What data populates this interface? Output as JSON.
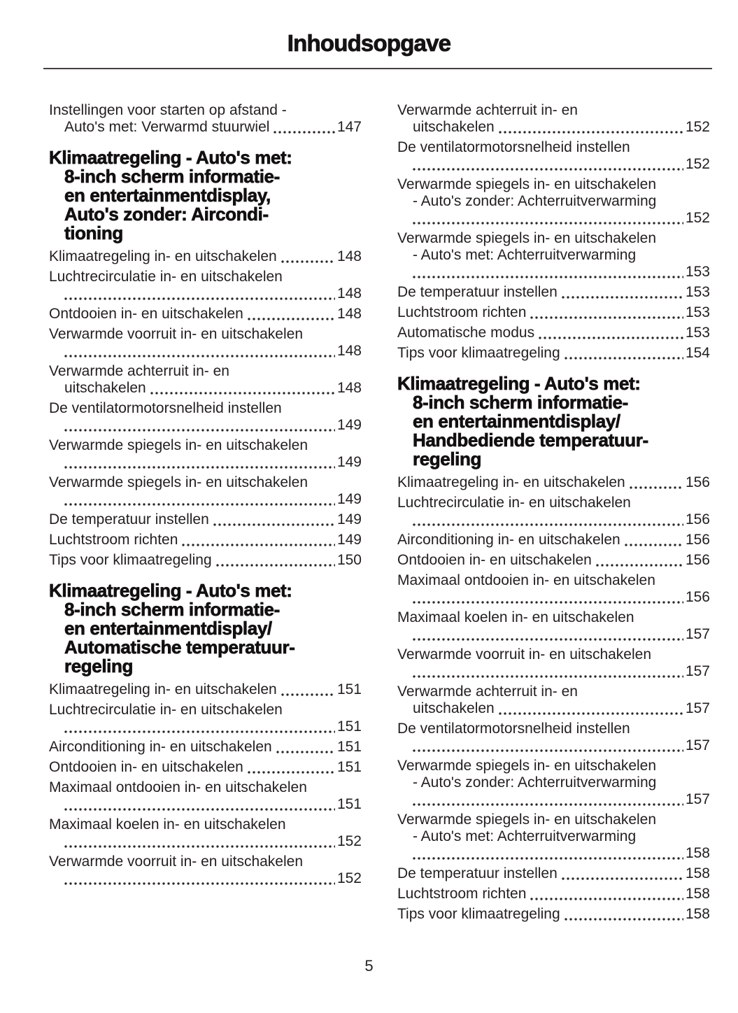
{
  "page": {
    "title": "Inhoudsopgave",
    "footer_page_number": "5",
    "background_color": "#ffffff",
    "text_color": "#231f20",
    "heading_color": "#121011",
    "divider_color": "#454143"
  },
  "toc": {
    "columns": [
      {
        "name": "left",
        "blocks": [
          {
            "type": "entry",
            "lines": [
              "Instellingen voor starten op afstand -",
              "Auto's met: Verwarmd stuurwiel"
            ],
            "page": "147"
          },
          {
            "type": "heading",
            "lines": [
              "Klimaatregeling - Auto's met:",
              "8-inch scherm informatie-",
              "en entertainmentdisplay,",
              "Auto's zonder: Aircondi-",
              "tioning"
            ]
          },
          {
            "type": "entry",
            "lines": [
              "Klimaatregeling in- en uitschakelen"
            ],
            "page": "148"
          },
          {
            "type": "entry",
            "lines": [
              "Luchtrecirculatie in- en uitschakelen",
              ""
            ],
            "page": "148"
          },
          {
            "type": "entry",
            "lines": [
              "Ontdooien in- en uitschakelen"
            ],
            "page": "148"
          },
          {
            "type": "entry",
            "lines": [
              "Verwarmde voorruit in- en uitschakelen",
              ""
            ],
            "page": "148"
          },
          {
            "type": "entry",
            "lines": [
              "Verwarmde achterruit in- en",
              "uitschakelen"
            ],
            "page": "148"
          },
          {
            "type": "entry",
            "lines": [
              "De ventilatormotorsnelheid instellen",
              ""
            ],
            "page": "149"
          },
          {
            "type": "entry",
            "lines": [
              "Verwarmde spiegels in- en uitschakelen",
              ""
            ],
            "page": "149"
          },
          {
            "type": "entry",
            "lines": [
              "Verwarmde spiegels in- en uitschakelen",
              ""
            ],
            "page": "149"
          },
          {
            "type": "entry",
            "lines": [
              "De temperatuur instellen"
            ],
            "page": "149"
          },
          {
            "type": "entry",
            "lines": [
              "Luchtstroom richten"
            ],
            "page": "149"
          },
          {
            "type": "entry",
            "lines": [
              "Tips voor klimaatregeling"
            ],
            "page": "150"
          },
          {
            "type": "heading",
            "lines": [
              "Klimaatregeling - Auto's met:",
              "8-inch scherm informatie-",
              "en entertainmentdisplay/",
              "Automatische temperatuur-",
              "regeling"
            ]
          },
          {
            "type": "entry",
            "lines": [
              "Klimaatregeling in- en uitschakelen"
            ],
            "page": "151"
          },
          {
            "type": "entry",
            "lines": [
              "Luchtrecirculatie in- en uitschakelen",
              ""
            ],
            "page": "151"
          },
          {
            "type": "entry",
            "lines": [
              "Airconditioning in- en uitschakelen"
            ],
            "page": "151"
          },
          {
            "type": "entry",
            "lines": [
              "Ontdooien in- en uitschakelen"
            ],
            "page": "151"
          },
          {
            "type": "entry",
            "lines": [
              "Maximaal ontdooien in- en uitschakelen",
              ""
            ],
            "page": "151"
          },
          {
            "type": "entry",
            "lines": [
              "Maximaal koelen in- en uitschakelen",
              ""
            ],
            "page": "152"
          },
          {
            "type": "entry",
            "lines": [
              "Verwarmde voorruit in- en uitschakelen",
              ""
            ],
            "page": "152"
          }
        ]
      },
      {
        "name": "right",
        "blocks": [
          {
            "type": "entry",
            "lines": [
              "Verwarmde achterruit in- en",
              "uitschakelen"
            ],
            "page": "152"
          },
          {
            "type": "entry",
            "lines": [
              "De ventilatormotorsnelheid instellen",
              ""
            ],
            "page": "152"
          },
          {
            "type": "entry",
            "lines": [
              "Verwarmde spiegels in- en uitschakelen",
              "- Auto's zonder: Achterruitverwarming",
              ""
            ],
            "page": "152"
          },
          {
            "type": "entry",
            "lines": [
              "Verwarmde spiegels in- en uitschakelen",
              "- Auto's met: Achterruitverwarming",
              ""
            ],
            "page": "153"
          },
          {
            "type": "entry",
            "lines": [
              "De temperatuur instellen"
            ],
            "page": "153"
          },
          {
            "type": "entry",
            "lines": [
              "Luchtstroom richten"
            ],
            "page": "153"
          },
          {
            "type": "entry",
            "lines": [
              "Automatische modus"
            ],
            "page": "153"
          },
          {
            "type": "entry",
            "lines": [
              "Tips voor klimaatregeling"
            ],
            "page": "154"
          },
          {
            "type": "heading",
            "lines": [
              "Klimaatregeling - Auto's met:",
              "8-inch scherm informatie-",
              "en entertainmentdisplay/",
              "Handbediende temperatuur-",
              "regeling"
            ]
          },
          {
            "type": "entry",
            "lines": [
              "Klimaatregeling in- en uitschakelen"
            ],
            "page": "156"
          },
          {
            "type": "entry",
            "lines": [
              "Luchtrecirculatie in- en uitschakelen",
              ""
            ],
            "page": "156"
          },
          {
            "type": "entry",
            "lines": [
              "Airconditioning in- en uitschakelen"
            ],
            "page": "156"
          },
          {
            "type": "entry",
            "lines": [
              "Ontdooien in- en uitschakelen"
            ],
            "page": "156"
          },
          {
            "type": "entry",
            "lines": [
              "Maximaal ontdooien in- en uitschakelen",
              ""
            ],
            "page": "156"
          },
          {
            "type": "entry",
            "lines": [
              "Maximaal koelen in- en uitschakelen",
              ""
            ],
            "page": "157"
          },
          {
            "type": "entry",
            "lines": [
              "Verwarmde voorruit in- en uitschakelen",
              ""
            ],
            "page": "157"
          },
          {
            "type": "entry",
            "lines": [
              "Verwarmde achterruit in- en",
              "uitschakelen"
            ],
            "page": "157"
          },
          {
            "type": "entry",
            "lines": [
              "De ventilatormotorsnelheid instellen",
              ""
            ],
            "page": "157"
          },
          {
            "type": "entry",
            "lines": [
              "Verwarmde spiegels in- en uitschakelen",
              "- Auto's zonder: Achterruitverwarming",
              ""
            ],
            "page": "157"
          },
          {
            "type": "entry",
            "lines": [
              "Verwarmde spiegels in- en uitschakelen",
              "- Auto's met: Achterruitverwarming",
              ""
            ],
            "page": "158"
          },
          {
            "type": "entry",
            "lines": [
              "De temperatuur instellen"
            ],
            "page": "158"
          },
          {
            "type": "entry",
            "lines": [
              "Luchtstroom richten"
            ],
            "page": "158"
          },
          {
            "type": "entry",
            "lines": [
              "Tips voor klimaatregeling"
            ],
            "page": "158"
          }
        ]
      }
    ]
  }
}
